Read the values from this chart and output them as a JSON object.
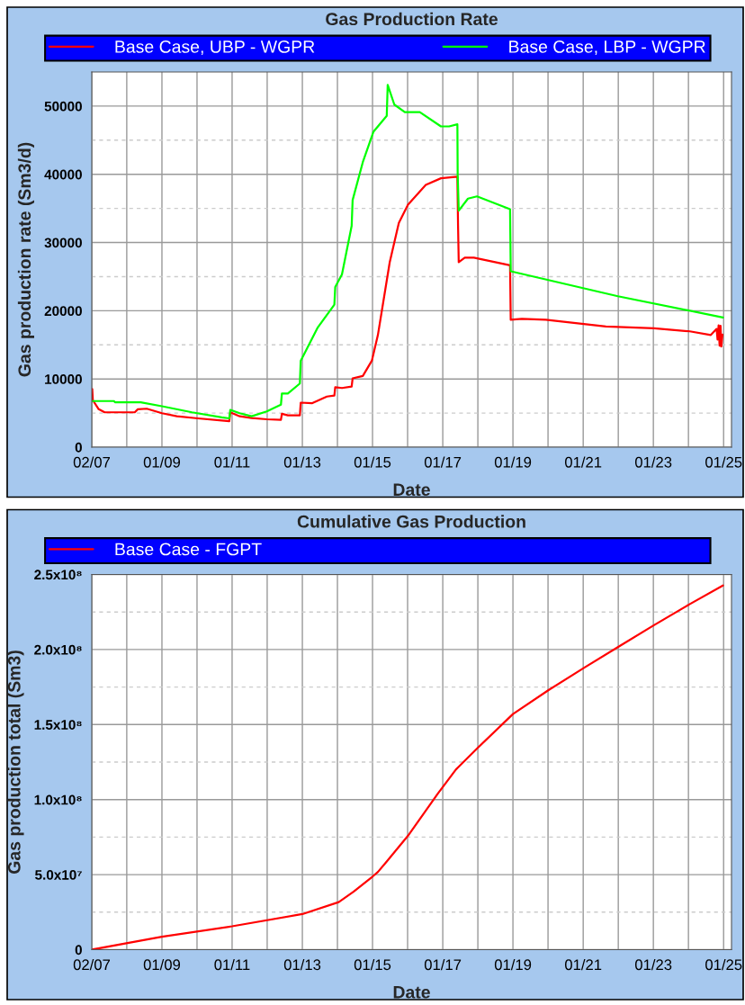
{
  "chart_data": [
    {
      "type": "line",
      "title": "Gas Production Rate",
      "xlabel": "Date",
      "ylabel": "Gas production rate (Sm3/d)",
      "legend": "top",
      "grid": true,
      "xlim": [
        "2007-01-02",
        "2025-03-24"
      ],
      "ylim": [
        0,
        55000
      ],
      "xticks": [
        {
          "value": "2007-01-02",
          "label": "02/07"
        },
        {
          "value": "2008-01-01",
          "label": null
        },
        {
          "value": "2009-01-01",
          "label": "01/09"
        },
        {
          "value": "2010-01-01",
          "label": null
        },
        {
          "value": "2011-01-01",
          "label": "01/11"
        },
        {
          "value": "2012-01-01",
          "label": null
        },
        {
          "value": "2013-01-01",
          "label": "01/13"
        },
        {
          "value": "2014-01-01",
          "label": null
        },
        {
          "value": "2015-01-01",
          "label": "01/15"
        },
        {
          "value": "2016-01-01",
          "label": null
        },
        {
          "value": "2017-01-01",
          "label": "01/17"
        },
        {
          "value": "2018-01-01",
          "label": null
        },
        {
          "value": "2019-01-01",
          "label": "01/19"
        },
        {
          "value": "2020-01-01",
          "label": null
        },
        {
          "value": "2021-01-01",
          "label": "01/21"
        },
        {
          "value": "2022-01-01",
          "label": null
        },
        {
          "value": "2023-01-01",
          "label": "01/23"
        },
        {
          "value": "2024-01-01",
          "label": null
        },
        {
          "value": "2025-01-01",
          "label": "01/25"
        }
      ],
      "yticks": [
        0,
        {
          "value": 5000,
          "label": null
        },
        10000,
        {
          "value": 15000,
          "label": null
        },
        20000,
        {
          "value": 25000,
          "label": null
        },
        30000,
        {
          "value": 35000,
          "label": null
        },
        40000,
        {
          "value": 45000,
          "label": null
        },
        50000
      ],
      "series": [
        {
          "name": "Base Case, UBP - WGPR",
          "color": "#ff0000",
          "x": [
            "2007-01-02",
            "2007-01-07",
            "2007-01-13",
            "2007-03-15",
            "2007-05-16",
            "2008-03-24",
            "2008-04-25",
            "2008-07-27",
            "2009-01-01",
            "2009-06-05",
            "2010-01-10",
            "2010-09-16",
            "2010-12-03",
            "2010-12-13",
            "2011-03-21",
            "2011-07-24",
            "2011-12-28",
            "2012-05-23",
            "2012-06-02",
            "2012-08-03",
            "2012-12-06",
            "2012-12-15",
            "2013-04-10",
            "2013-09-13",
            "2013-11-30",
            "2013-12-09",
            "2014-02-17",
            "2014-05-29",
            "2014-06-08",
            "2014-09-22",
            "2014-12-25",
            "2015-02-26",
            "2015-05-14",
            "2015-06-29",
            "2015-10-02",
            "2016-01-05",
            "2016-07-08",
            "2016-12-13",
            "2017-06-02",
            "2017-06-09",
            "2017-06-16",
            "2017-08-18",
            "2017-11-21",
            "2018-12-02",
            "2018-12-09",
            "2019-04-04",
            "2019-12-09",
            "2021-08-25",
            "2023-01-08",
            "2024-01-15",
            "2024-08-21",
            "2024-10-20",
            "2024-10-30",
            "2024-11-10",
            "2024-11-20",
            "2024-11-30",
            "2024-12-08",
            "2024-12-20"
          ],
          "values": [
            8500,
            8530,
            6890,
            5560,
            5110,
            5110,
            5560,
            5640,
            4980,
            4530,
            4220,
            3910,
            3820,
            5110,
            4530,
            4270,
            4090,
            4000,
            4890,
            4670,
            4670,
            6530,
            6440,
            7420,
            7560,
            8800,
            8670,
            8890,
            10090,
            10440,
            12670,
            16440,
            23110,
            27110,
            32890,
            35560,
            38440,
            39420,
            39640,
            32440,
            27110,
            27780,
            27780,
            26670,
            18670,
            18800,
            18670,
            17690,
            17420,
            16980,
            16440,
            17330,
            15780,
            17870,
            14890,
            17780,
            14760,
            16500
          ]
        },
        {
          "name": "Base Case, LBP - WGPR",
          "color": "#00ff00",
          "x": [
            "2007-01-07",
            "2007-08-20",
            "2007-09-01",
            "2008-05-25",
            "2009-01-01",
            "2009-11-09",
            "2010-09-16",
            "2010-12-03",
            "2010-12-13",
            "2011-03-21",
            "2011-07-24",
            "2011-12-28",
            "2012-05-23",
            "2012-06-02",
            "2012-08-03",
            "2012-12-06",
            "2012-12-15",
            "2013-06-11",
            "2013-11-30",
            "2013-12-09",
            "2014-02-17",
            "2014-05-29",
            "2014-06-08",
            "2014-09-22",
            "2015-01-10",
            "2015-05-29",
            "2015-06-08",
            "2015-08-16",
            "2015-12-03",
            "2016-05-07",
            "2016-12-13",
            "2017-03-08",
            "2017-06-02",
            "2017-06-05",
            "2017-06-16",
            "2017-09-20",
            "2017-12-23",
            "2018-12-02",
            "2018-12-09",
            "2021-12-28",
            "2024-12-25"
          ],
          "values": [
            6760,
            6760,
            6580,
            6580,
            6000,
            5110,
            4360,
            4220,
            5470,
            4980,
            4530,
            5240,
            6220,
            7870,
            7870,
            9330,
            12670,
            17560,
            20890,
            23470,
            25330,
            32440,
            36220,
            41780,
            46220,
            48580,
            53110,
            50220,
            49110,
            49110,
            47020,
            47020,
            47330,
            40000,
            34670,
            36440,
            36760,
            34890,
            25780,
            22130,
            19020
          ]
        }
      ]
    },
    {
      "type": "line",
      "title": "Cumulative Gas Production",
      "xlabel": "Date",
      "ylabel": "Gas production total (Sm3)",
      "legend": "top",
      "grid": true,
      "xlim": [
        "2007-01-02",
        "2025-03-24"
      ],
      "ylim": [
        0,
        250000000
      ],
      "xticks": [
        {
          "value": "2007-01-02",
          "label": "02/07"
        },
        {
          "value": "2008-01-01",
          "label": null
        },
        {
          "value": "2009-01-01",
          "label": "01/09"
        },
        {
          "value": "2010-01-01",
          "label": null
        },
        {
          "value": "2011-01-01",
          "label": "01/11"
        },
        {
          "value": "2012-01-01",
          "label": null
        },
        {
          "value": "2013-01-01",
          "label": "01/13"
        },
        {
          "value": "2014-01-01",
          "label": null
        },
        {
          "value": "2015-01-01",
          "label": "01/15"
        },
        {
          "value": "2016-01-01",
          "label": null
        },
        {
          "value": "2017-01-01",
          "label": "01/17"
        },
        {
          "value": "2018-01-01",
          "label": null
        },
        {
          "value": "2019-01-01",
          "label": "01/19"
        },
        {
          "value": "2020-01-01",
          "label": null
        },
        {
          "value": "2021-01-01",
          "label": "01/21"
        },
        {
          "value": "2022-01-01",
          "label": null
        },
        {
          "value": "2023-01-01",
          "label": "01/23"
        },
        {
          "value": "2024-01-01",
          "label": null
        },
        {
          "value": "2025-01-01",
          "label": "01/25"
        }
      ],
      "yticks": [
        0,
        {
          "value": 25000000,
          "label": null
        },
        {
          "value": 50000000,
          "label": "5.0x10⁷"
        },
        {
          "value": 75000000,
          "label": null
        },
        {
          "value": 100000000,
          "label": "1.0x10⁸"
        },
        {
          "value": 125000000,
          "label": null
        },
        {
          "value": 150000000,
          "label": "1.5x10⁸"
        },
        {
          "value": 175000000,
          "label": null
        },
        {
          "value": 200000000,
          "label": "2.0x10⁸"
        },
        {
          "value": 225000000,
          "label": null
        },
        {
          "value": 250000000,
          "label": "2.5x10⁸"
        }
      ],
      "series": [
        {
          "name": "Base Case - FGPT",
          "color": "#ff0000",
          "x": [
            "2007-01-02",
            "2009-01-01",
            "2011-01-01",
            "2013-01-01",
            "2014-01-15",
            "2014-06-20",
            "2015-01-01",
            "2015-02-26",
            "2015-05-29",
            "2016-01-04",
            "2016-11-10",
            "2017-05-17",
            "2017-12-23",
            "2019-01-01",
            "2020-01-10",
            "2021-01-19",
            "2022-01-12",
            "2023-01-07",
            "2024-01-16",
            "2024-12-25"
          ],
          "values": [
            0,
            8600000,
            15600000,
            23700000,
            31700000,
            38700000,
            48700000,
            51800000,
            58800000,
            75800000,
            103900000,
            120000000,
            134000000,
            157000000,
            173100000,
            188200000,
            202200000,
            216200000,
            230300000,
            242700000
          ]
        }
      ]
    }
  ]
}
